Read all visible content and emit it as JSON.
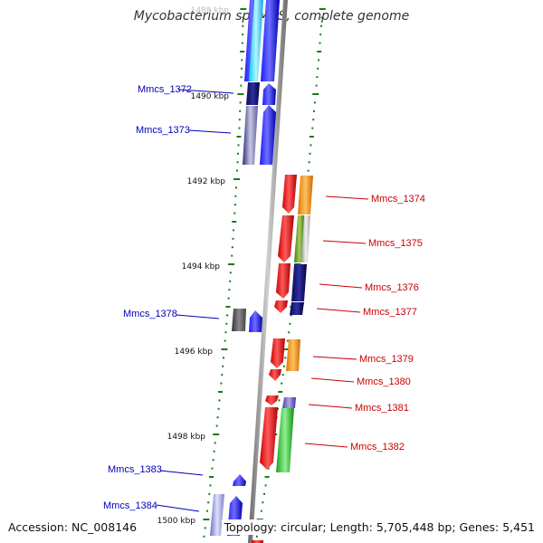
{
  "title": "Mycobacterium sp. MCS, complete genome",
  "accession": "Accession: NC_008146",
  "topology": "Topology: circular; Length: 5,705,448 bp; Genes: 5,451",
  "ticks": [
    {
      "kbp": 1488,
      "label": "1488 kbp"
    },
    {
      "kbp": 1490,
      "label": "1490 kbp"
    },
    {
      "kbp": 1492,
      "label": "1492 kbp"
    },
    {
      "kbp": 1494,
      "label": "1494 kbp"
    },
    {
      "kbp": 1496,
      "label": "1496 kbp"
    },
    {
      "kbp": 1498,
      "label": "1498 kbp"
    },
    {
      "kbp": 1500,
      "label": "1500 kbp"
    }
  ],
  "left_labels": [
    "Mmcs_1372",
    "Mmcs_1373",
    "Mmcs_1378",
    "Mmcs_1383",
    "Mmcs_1384"
  ],
  "right_labels": [
    "Mmcs_1374",
    "Mmcs_1375",
    "Mmcs_1376",
    "Mmcs_1377",
    "Mmcs_1379",
    "Mmcs_1380",
    "Mmcs_1381",
    "Mmcs_1382"
  ],
  "colors": {
    "forward": "#0000ee",
    "reverse": "#ee0000",
    "label_forward": "#0000bb",
    "label_reverse": "#cc0000",
    "tick": "#1a7a1a",
    "backbone": "#888888"
  }
}
